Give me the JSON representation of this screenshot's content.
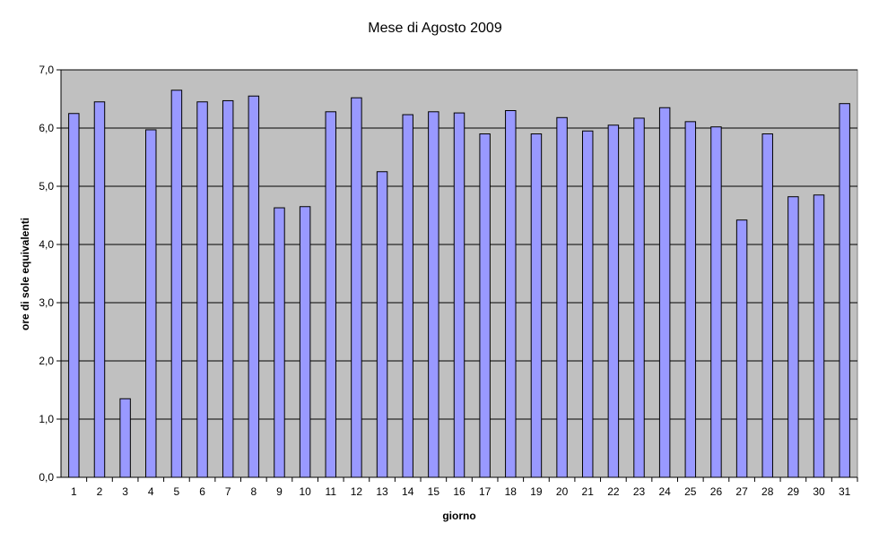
{
  "chart_data": {
    "type": "bar",
    "title": "Mese di Agosto 2009",
    "xlabel": "giorno",
    "ylabel": "ore di sole equivalenti",
    "ylim": [
      0,
      7
    ],
    "ytick_step": 1,
    "ytick_labels": [
      "0,0",
      "1,0",
      "2,0",
      "3,0",
      "4,0",
      "5,0",
      "6,0",
      "7,0"
    ],
    "grid": true,
    "legend": "none",
    "categories": [
      "1",
      "2",
      "3",
      "4",
      "5",
      "6",
      "7",
      "8",
      "9",
      "10",
      "11",
      "12",
      "13",
      "14",
      "15",
      "16",
      "17",
      "18",
      "19",
      "20",
      "21",
      "22",
      "23",
      "24",
      "25",
      "26",
      "27",
      "28",
      "29",
      "30",
      "31"
    ],
    "values": [
      6.25,
      6.45,
      1.35,
      5.97,
      6.65,
      6.45,
      6.47,
      6.55,
      4.63,
      4.65,
      6.28,
      6.52,
      5.25,
      6.23,
      6.28,
      6.26,
      5.9,
      6.3,
      5.9,
      6.18,
      5.95,
      6.05,
      6.17,
      6.35,
      6.11,
      6.02,
      4.42,
      5.9,
      4.82,
      4.85,
      6.42
    ],
    "colors": {
      "bar_fill": "#9999ff",
      "bar_stroke": "#000000",
      "plot_background": "#c0c0c0",
      "gridline": "#000000"
    }
  }
}
